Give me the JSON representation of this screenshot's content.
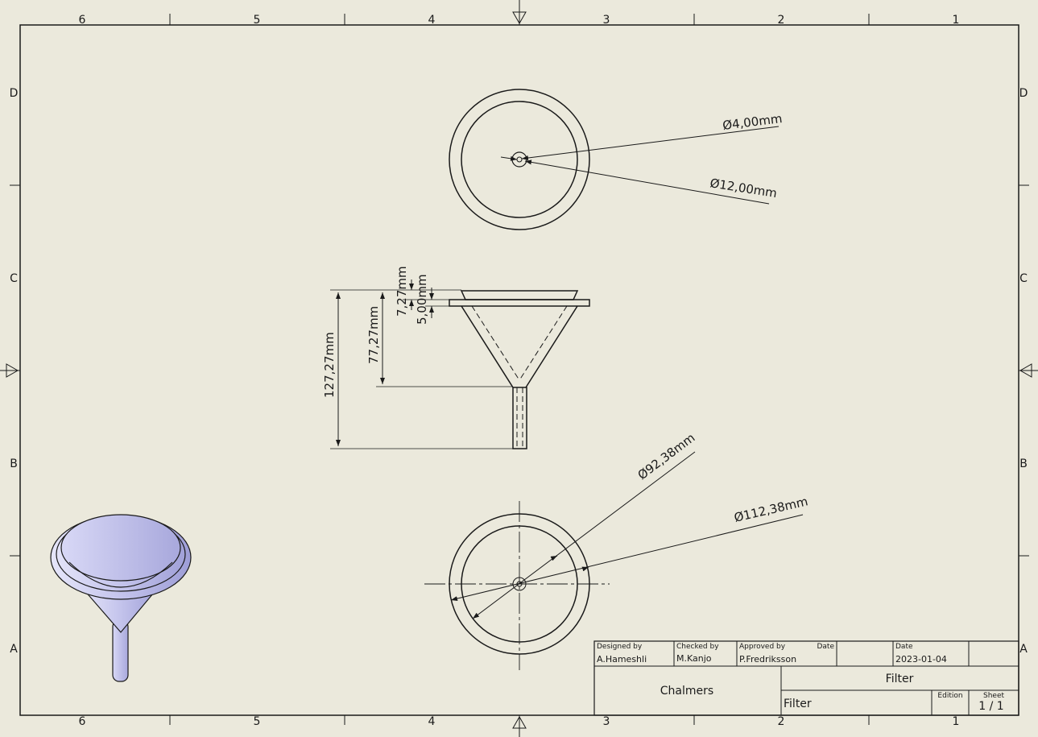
{
  "border": {
    "columns": [
      "6",
      "5",
      "4",
      "3",
      "2",
      "1"
    ],
    "rows": [
      "D",
      "C",
      "B",
      "A"
    ]
  },
  "dimensions": {
    "top_small_dia": "Ø4,00mm",
    "top_large_dia": "Ø12,00mm",
    "side_rim_height": "7,27mm",
    "side_flange_thickness": "5,00mm",
    "side_cone_height": "77,27mm",
    "side_total_height": "127,27mm",
    "bottom_inner_dia": "Ø92,38mm",
    "bottom_outer_dia": "Ø112,38mm"
  },
  "title_block": {
    "designed_by_label": "Designed by",
    "designed_by": "A.Hameshli",
    "checked_by_label": "Checked by",
    "checked_by": "M.Kanjo",
    "approved_by_label": "Approved by",
    "approved_by": "P.Fredriksson",
    "date_label_1": "Date",
    "date_label_2": "Date",
    "date": "2023-01-04",
    "company": "Chalmers",
    "title": "Filter",
    "subtitle": "Filter",
    "edition_label": "Edition",
    "sheet_label": "Sheet",
    "sheet": "1 / 1"
  },
  "colors": {
    "background": "#ebe9dc",
    "line": "#1a1a1a",
    "iso_fill": "#c9c9ec"
  }
}
